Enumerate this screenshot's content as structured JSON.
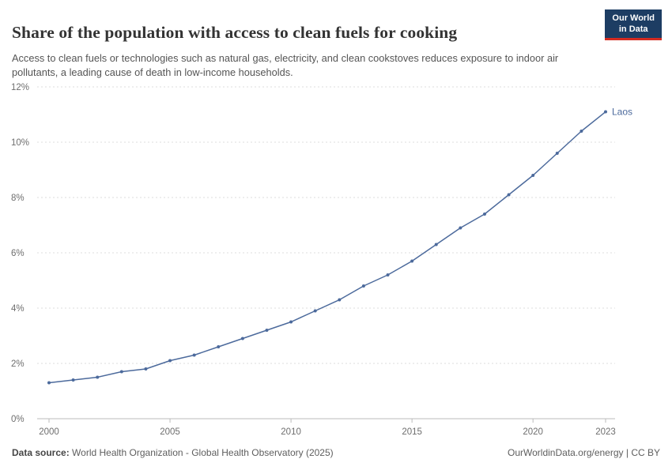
{
  "header": {
    "title": "Share of the population with access to clean fuels for cooking",
    "subtitle": "Access to clean fuels or technologies such as natural gas, electricity, and clean cookstoves reduces exposure to indoor air pollutants, a leading cause of death in low-income households.",
    "logo": {
      "line1": "Our World",
      "line2": "in Data"
    }
  },
  "chart_data": {
    "type": "line",
    "title": "Share of the population with access to clean fuels for cooking",
    "xlabel": "",
    "ylabel": "",
    "xlim": [
      2000,
      2023
    ],
    "ylim": [
      0,
      12
    ],
    "x_ticks": [
      2000,
      2005,
      2010,
      2015,
      2020,
      2023
    ],
    "y_ticks": [
      0,
      2,
      4,
      6,
      8,
      10,
      12
    ],
    "y_tick_suffix": "%",
    "grid": true,
    "legend_position": "end-of-line",
    "end_label": "Laos",
    "series": [
      {
        "name": "Laos",
        "color": "#4C6A9C",
        "x": [
          2000,
          2001,
          2002,
          2003,
          2004,
          2005,
          2006,
          2007,
          2008,
          2009,
          2010,
          2011,
          2012,
          2013,
          2014,
          2015,
          2016,
          2017,
          2018,
          2019,
          2020,
          2021,
          2022,
          2023
        ],
        "values": [
          1.3,
          1.4,
          1.5,
          1.7,
          1.8,
          2.1,
          2.3,
          2.6,
          2.9,
          3.2,
          3.5,
          3.9,
          4.3,
          4.8,
          5.2,
          5.7,
          6.3,
          6.9,
          7.4,
          8.1,
          8.8,
          9.6,
          10.4,
          11.1
        ]
      }
    ]
  },
  "footer": {
    "source_label": "Data source:",
    "source_text": " World Health Organization - Global Health Observatory (2025)",
    "right_text": "OurWorldinData.org/energy | CC BY"
  }
}
